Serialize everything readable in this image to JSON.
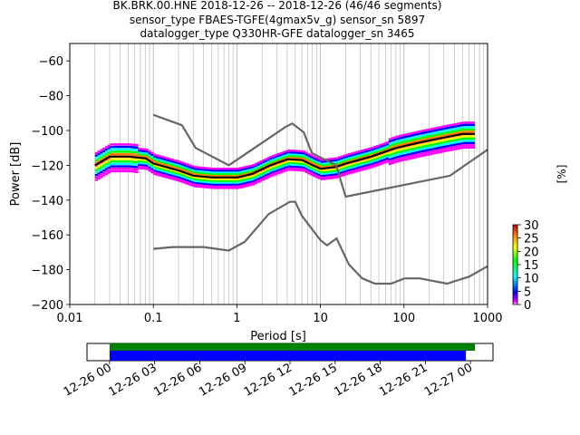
{
  "title_lines": [
    "BK.BRK.00.HNE   2018-12-26 -- 2018-12-26  (46/46 segments)",
    "sensor_type FBAES-TGFE(4gmax5v_g) sensor_sn 5897",
    "datalogger_type Q330HR-GFE datalogger_sn 3465"
  ],
  "chart_data": {
    "type": "heatmap",
    "xlabel": "Period [s]",
    "ylabel": "Power [dB]",
    "x_scale": "log",
    "xlim": [
      0.01,
      1000
    ],
    "ylim": [
      -200,
      -50
    ],
    "x_ticks": [
      {
        "v": 0.01,
        "label": "0.01"
      },
      {
        "v": 0.1,
        "label": "0.1"
      },
      {
        "v": 1,
        "label": "1"
      },
      {
        "v": 10,
        "label": "10"
      },
      {
        "v": 100,
        "label": "100"
      },
      {
        "v": 1000,
        "label": "1000"
      }
    ],
    "y_ticks": [
      {
        "v": -60,
        "label": "−60"
      },
      {
        "v": -80,
        "label": "−80"
      },
      {
        "v": -100,
        "label": "−100"
      },
      {
        "v": -120,
        "label": "−120"
      },
      {
        "v": -140,
        "label": "−140"
      },
      {
        "v": -160,
        "label": "−160"
      },
      {
        "v": -180,
        "label": "−180"
      },
      {
        "v": -200,
        "label": "−200"
      }
    ],
    "grid": "x-major-and-minor",
    "noise_models": {
      "color": "#666666",
      "high": [
        [
          0.1,
          -91
        ],
        [
          0.22,
          -97
        ],
        [
          0.32,
          -110
        ],
        [
          0.8,
          -120
        ],
        [
          3.8,
          -98
        ],
        [
          4.6,
          -96
        ],
        [
          6.3,
          -101
        ],
        [
          7.9,
          -113
        ],
        [
          15.4,
          -120
        ],
        [
          20,
          -138
        ],
        [
          354.8,
          -126
        ],
        [
          1000,
          -111
        ]
      ],
      "low": [
        [
          0.1,
          -168
        ],
        [
          0.17,
          -167
        ],
        [
          0.4,
          -167
        ],
        [
          0.8,
          -169
        ],
        [
          1.24,
          -164
        ],
        [
          2.4,
          -148
        ],
        [
          4.3,
          -141
        ],
        [
          5,
          -141
        ],
        [
          6,
          -149
        ],
        [
          10,
          -163
        ],
        [
          12,
          -166
        ],
        [
          15.6,
          -162
        ],
        [
          21.9,
          -177
        ],
        [
          31.6,
          -185
        ],
        [
          45,
          -188
        ],
        [
          70,
          -188
        ],
        [
          101,
          -185
        ],
        [
          154,
          -185
        ],
        [
          328,
          -188
        ],
        [
          600,
          -184
        ],
        [
          1000,
          -178
        ]
      ]
    },
    "mean_curve": {
      "color": "#000000",
      "points": [
        [
          0.02,
          -120
        ],
        [
          0.03,
          -115
        ],
        [
          0.05,
          -115
        ],
        [
          0.08,
          -116
        ],
        [
          0.1,
          -119
        ],
        [
          0.2,
          -123
        ],
        [
          0.3,
          -126
        ],
        [
          0.5,
          -127
        ],
        [
          1,
          -127
        ],
        [
          1.5,
          -125
        ],
        [
          2.5,
          -120
        ],
        [
          4,
          -116.5
        ],
        [
          6,
          -117
        ],
        [
          8,
          -120
        ],
        [
          10,
          -122
        ],
        [
          15,
          -121
        ],
        [
          20,
          -119
        ],
        [
          40,
          -115
        ],
        [
          80,
          -110
        ],
        [
          150,
          -107
        ],
        [
          300,
          -104
        ],
        [
          500,
          -102
        ],
        [
          700,
          -102
        ]
      ]
    },
    "colorbar": {
      "label": "[%]",
      "min": 0,
      "max": 30,
      "ticks": [
        0,
        5,
        10,
        15,
        20,
        25,
        30
      ]
    }
  },
  "timeline": {
    "x_ticks": [
      "12-26 00",
      "12-26 03",
      "12-26 06",
      "12-26 09",
      "12-26 12",
      "12-26 15",
      "12-26 18",
      "12-26 21",
      "12-27 00"
    ],
    "range_hours": [
      -1.5,
      25.5
    ],
    "green_bar_hours": [
      0,
      24.3
    ],
    "blue_bar_hours": [
      0,
      23.7
    ],
    "green_color": "#008000",
    "blue_color": "#0000ff"
  }
}
